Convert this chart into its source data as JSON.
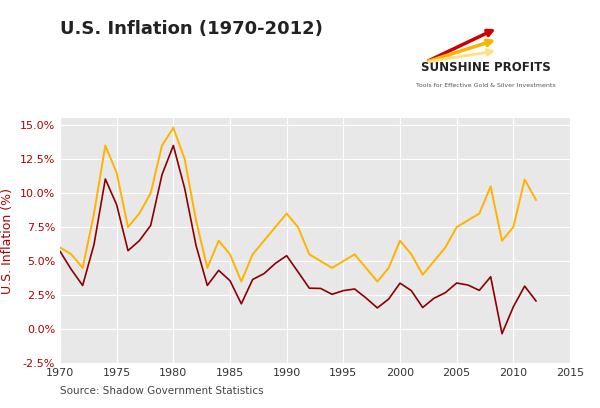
{
  "title": "U.S. Inflation (1970-2012)",
  "ylabel": "U.S. Inflation (%)",
  "xlabel_source": "Source: Shadow Government Statistics",
  "bg_color": "#e8e8e8",
  "outer_bg": "#ffffff",
  "ylim": [
    -2.5,
    15.5
  ],
  "xlim": [
    1970,
    2015
  ],
  "yticks": [
    -2.5,
    0.0,
    2.5,
    5.0,
    7.5,
    10.0,
    12.5,
    15.0
  ],
  "ytick_labels": [
    "-2.5%",
    "0.0%",
    "2.5%",
    "5.0%",
    "7.5%",
    "10.0%",
    "12.5%",
    "15.0%"
  ],
  "xticks": [
    1970,
    1975,
    1980,
    1985,
    1990,
    1995,
    2000,
    2005,
    2010,
    2015
  ],
  "line1_color": "#FFB300",
  "line2_color": "#8B0000",
  "title_fontsize": 13,
  "axis_label_fontsize": 9,
  "tick_label_color": "#AA0000",
  "grid_color": "#ffffff",
  "years": [
    1970,
    1971,
    1972,
    1973,
    1974,
    1975,
    1976,
    1977,
    1978,
    1979,
    1980,
    1981,
    1982,
    1983,
    1984,
    1985,
    1986,
    1987,
    1988,
    1989,
    1990,
    1991,
    1992,
    1993,
    1994,
    1995,
    1996,
    1997,
    1998,
    1999,
    2000,
    2001,
    2002,
    2003,
    2004,
    2005,
    2006,
    2007,
    2008,
    2009,
    2010,
    2011,
    2012
  ],
  "cpi_official": [
    5.72,
    4.38,
    3.21,
    6.22,
    11.04,
    9.14,
    5.77,
    6.5,
    7.62,
    11.35,
    13.5,
    10.35,
    6.16,
    3.21,
    4.32,
    3.56,
    1.86,
    3.65,
    4.08,
    4.83,
    5.4,
    4.21,
    3.01,
    2.99,
    2.56,
    2.83,
    2.95,
    2.29,
    1.56,
    2.21,
    3.38,
    2.83,
    1.59,
    2.27,
    2.68,
    3.39,
    3.24,
    2.85,
    3.85,
    -0.34,
    1.64,
    3.16,
    2.07
  ],
  "sgs_alternate": [
    6.0,
    5.5,
    4.5,
    8.5,
    13.5,
    11.5,
    7.5,
    8.5,
    10.0,
    13.5,
    14.8,
    12.5,
    8.0,
    4.5,
    6.5,
    5.5,
    3.5,
    5.5,
    6.5,
    7.5,
    8.5,
    7.5,
    5.5,
    5.0,
    4.5,
    5.0,
    5.5,
    4.5,
    3.5,
    4.5,
    6.5,
    5.5,
    4.0,
    5.0,
    6.0,
    7.5,
    8.0,
    8.5,
    10.5,
    6.5,
    7.5,
    11.0,
    9.5
  ]
}
